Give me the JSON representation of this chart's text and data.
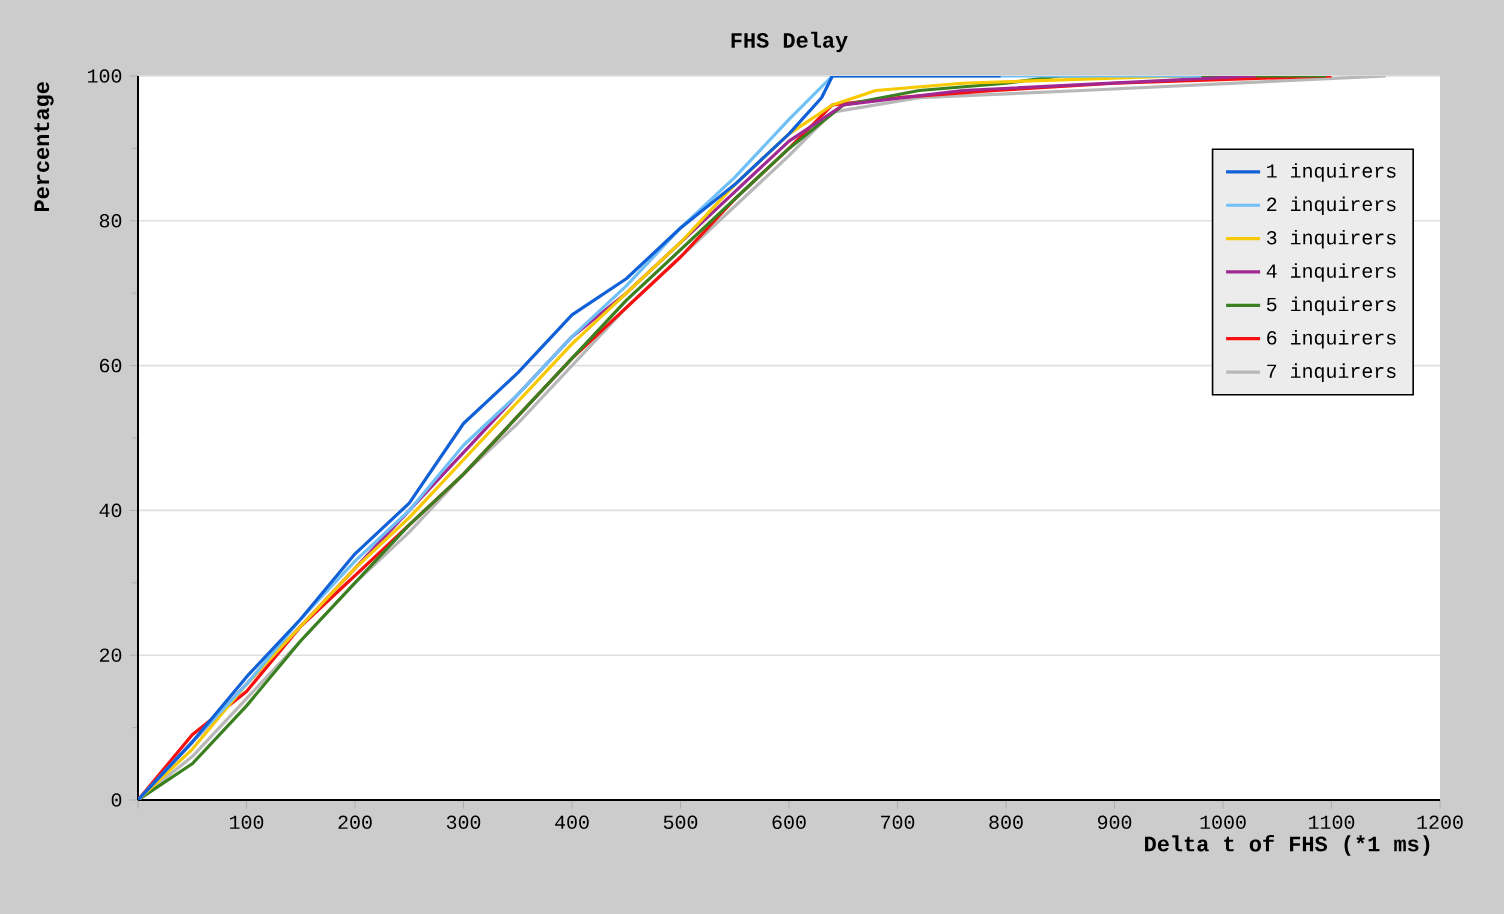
{
  "chart_data": {
    "type": "line",
    "title": "FHS Delay",
    "xlabel": "Delta t of FHS (*1 ms)",
    "ylabel": "Percentage",
    "xlim": [
      0,
      1200
    ],
    "ylim": [
      0,
      100
    ],
    "xticks": [
      {
        "value": 0,
        "label": null
      },
      100,
      200,
      300,
      400,
      500,
      600,
      700,
      800,
      900,
      1000,
      1100,
      1200
    ],
    "yticks": [
      0,
      20,
      40,
      60,
      80,
      100
    ],
    "grid": "y",
    "legend": "top right",
    "marker": "none",
    "line_style": "solid",
    "series": [
      {
        "name": "1 inquirers",
        "color": "#1060d8",
        "x": [
          0,
          50,
          100,
          150,
          200,
          250,
          300,
          350,
          400,
          450,
          500,
          550,
          600,
          630,
          640,
          795
        ],
        "values": [
          0,
          8,
          17,
          25,
          34,
          41,
          52,
          59,
          67,
          72,
          79,
          85,
          92,
          97,
          100,
          100
        ]
      },
      {
        "name": "2 inquirers",
        "color": "#70c0f8",
        "x": [
          0,
          50,
          100,
          150,
          200,
          250,
          300,
          350,
          400,
          450,
          500,
          550,
          600,
          640,
          980
        ],
        "values": [
          0,
          8,
          16,
          25,
          33,
          40,
          49,
          56,
          64,
          71,
          79,
          86,
          94,
          100,
          100
        ]
      },
      {
        "name": "3 inquirers",
        "color": "#f8c800",
        "x": [
          0,
          50,
          100,
          150,
          200,
          250,
          300,
          350,
          400,
          450,
          500,
          550,
          600,
          640,
          680,
          760,
          960
        ],
        "values": [
          0,
          7,
          16,
          24,
          32,
          39,
          47,
          55,
          63,
          70,
          77,
          85,
          92,
          96,
          98,
          99,
          100
        ]
      },
      {
        "name": "4 inquirers",
        "color": "#a02890",
        "x": [
          0,
          50,
          100,
          150,
          200,
          250,
          300,
          350,
          400,
          450,
          500,
          550,
          600,
          650,
          760,
          1030
        ],
        "values": [
          0,
          8,
          16,
          24,
          32,
          40,
          48,
          56,
          64,
          70,
          77,
          84,
          91,
          96,
          98,
          100
        ]
      },
      {
        "name": "5 inquirers",
        "color": "#3a8020",
        "x": [
          0,
          50,
          100,
          150,
          200,
          250,
          300,
          350,
          400,
          450,
          500,
          550,
          600,
          650,
          720,
          800,
          850,
          1095
        ],
        "values": [
          0,
          5,
          13,
          22,
          30,
          38,
          45,
          53,
          61,
          69,
          76,
          83,
          90,
          96,
          98,
          99,
          100,
          100
        ]
      },
      {
        "name": "6 inquirers",
        "color": "#f81010",
        "x": [
          0,
          50,
          100,
          150,
          200,
          250,
          300,
          350,
          400,
          450,
          500,
          550,
          600,
          640,
          700,
          790,
          900,
          1100
        ],
        "values": [
          0,
          9,
          15,
          24,
          31,
          38,
          45,
          53,
          61,
          68,
          75,
          83,
          90,
          96,
          97,
          98,
          99,
          100
        ]
      },
      {
        "name": "7 inquirers",
        "color": "#b8b8b8",
        "x": [
          0,
          50,
          100,
          150,
          200,
          250,
          300,
          350,
          400,
          450,
          500,
          550,
          600,
          640,
          720,
          870,
          1150
        ],
        "values": [
          0,
          6,
          14,
          22,
          30,
          37,
          45,
          52,
          60,
          68,
          75,
          82,
          89,
          95,
          97,
          98,
          100
        ]
      }
    ]
  }
}
